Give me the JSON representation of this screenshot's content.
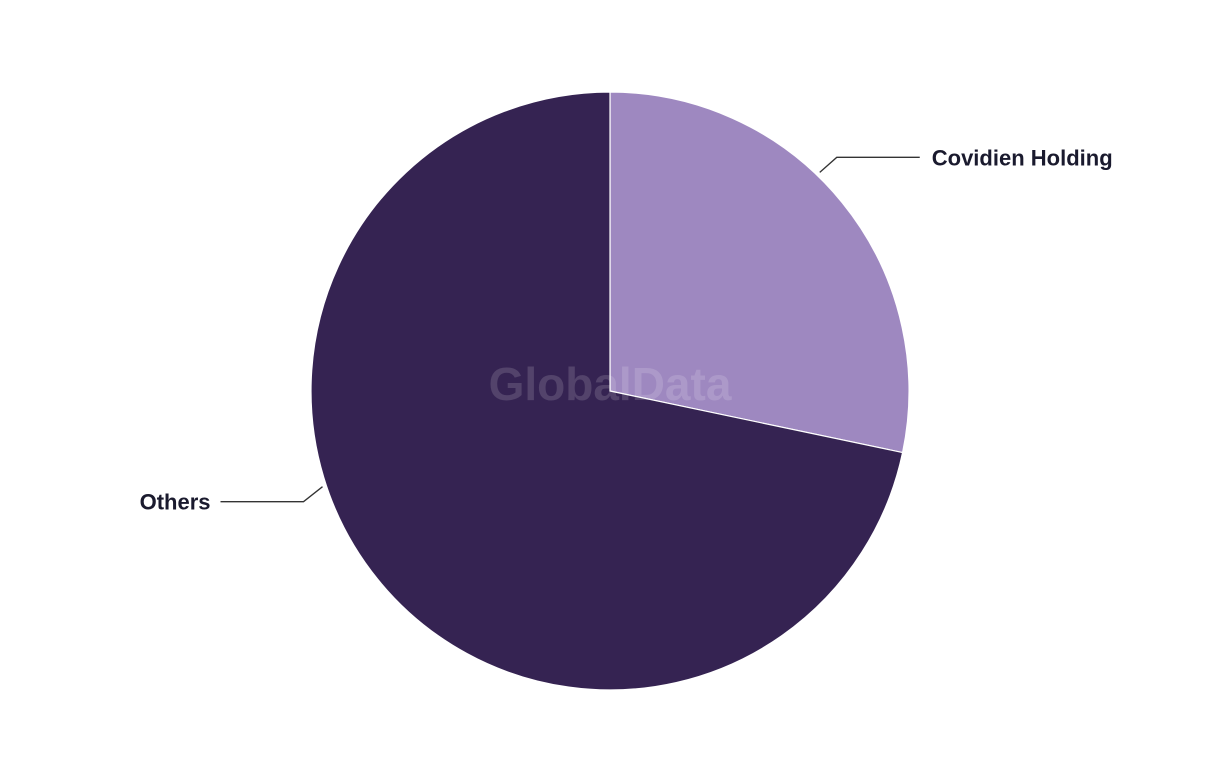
{
  "chart_data": {
    "type": "pie",
    "title": "",
    "slices": [
      {
        "label": "Covidien Holding",
        "value": 28.3,
        "color": "#9e88c0"
      },
      {
        "label": "Others",
        "value": 71.7,
        "color": "#352352"
      }
    ],
    "start_angle": "12 o'clock",
    "direction": "clockwise",
    "legend": "none (leader-line labels)"
  },
  "watermark": "GlobalData"
}
